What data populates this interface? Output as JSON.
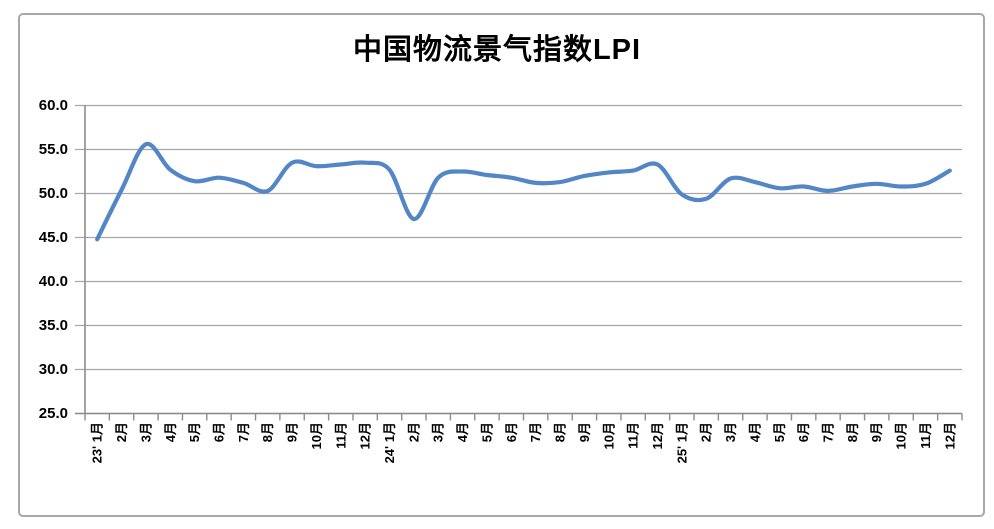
{
  "chart_data": {
    "type": "line",
    "title": "中国物流景气指数LPI",
    "legend": "none",
    "grid": "horizontal",
    "smooth": true,
    "xlabel": "",
    "ylabel": "",
    "ylim": [
      25.0,
      60.0
    ],
    "ytick_step": 5,
    "ytick_labels": [
      "60.0",
      "55.0",
      "50.0",
      "45.0",
      "40.0",
      "35.0",
      "30.0",
      "25.0"
    ],
    "categories": [
      "23' 1月",
      "2月",
      "3月",
      "4月",
      "5月",
      "6月",
      "7月",
      "8月",
      "9月",
      "10月",
      "11月",
      "12月",
      "24' 1月",
      "2月",
      "3月",
      "4月",
      "5月",
      "6月",
      "7月",
      "8月",
      "9月",
      "10月",
      "11月",
      "12月",
      "25' 1月",
      "2月",
      "3月",
      "4月",
      "5月",
      "6月",
      "7月",
      "8月",
      "9月",
      "10月",
      "11月",
      "12月"
    ],
    "series": [
      {
        "name": "中国物流景气指数LPI",
        "values": [
          44.8,
          50.4,
          55.6,
          52.7,
          51.4,
          51.8,
          51.2,
          50.3,
          53.5,
          53.1,
          53.3,
          53.5,
          52.7,
          47.1,
          51.8,
          52.5,
          52.1,
          51.8,
          51.2,
          51.3,
          52.0,
          52.4,
          52.6,
          53.3,
          49.9,
          49.4,
          51.7,
          51.3,
          50.6,
          50.8,
          50.3,
          50.8,
          51.1,
          50.8,
          51.1,
          52.6
        ]
      }
    ],
    "colors": {
      "line": "#5286c6",
      "gridline": "#a6a6a6",
      "axis": "#8c8c8c",
      "text": "#000000",
      "border": "#a8a8a8",
      "background": "#ffffff"
    }
  }
}
